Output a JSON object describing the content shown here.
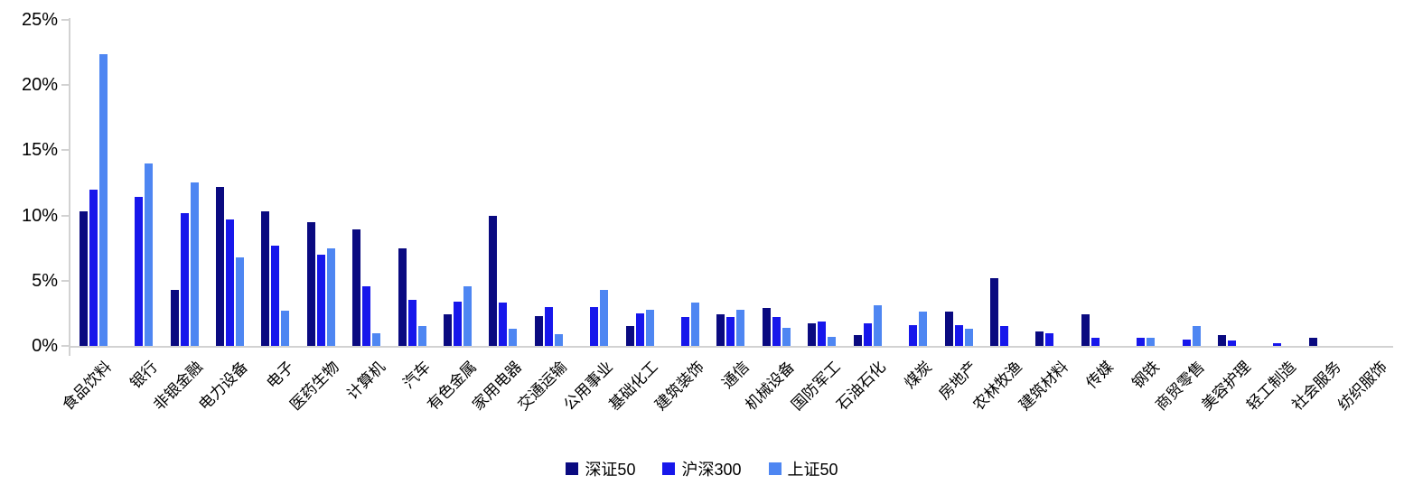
{
  "chart_data": {
    "type": "bar",
    "title": "",
    "categories": [
      "食品饮料",
      "银行",
      "非银金融",
      "电力设备",
      "电子",
      "医药生物",
      "计算机",
      "汽车",
      "有色金属",
      "家用电器",
      "交通运输",
      "公用事业",
      "基础化工",
      "建筑装饰",
      "通信",
      "机械设备",
      "国防军工",
      "石油石化",
      "煤炭",
      "房地产",
      "农林牧渔",
      "建筑材料",
      "传媒",
      "钢铁",
      "商贸零售",
      "美容护理",
      "轻工制造",
      "社会服务",
      "纺织服饰"
    ],
    "series": [
      {
        "name": "深证50",
        "color": "#0A0A80",
        "values": [
          10.3,
          0,
          4.3,
          12.2,
          10.3,
          9.5,
          8.9,
          7.5,
          2.4,
          10.0,
          2.3,
          0,
          1.5,
          0,
          2.4,
          2.9,
          1.7,
          0.8,
          0,
          2.6,
          5.2,
          1.1,
          2.4,
          0,
          0,
          0.8,
          0,
          0.6,
          0
        ]
      },
      {
        "name": "沪深300",
        "color": "#1717EB",
        "values": [
          12.0,
          11.4,
          10.2,
          9.7,
          7.7,
          7.0,
          4.6,
          3.5,
          3.4,
          3.3,
          3.0,
          3.0,
          2.5,
          2.2,
          2.2,
          2.2,
          1.9,
          1.7,
          1.6,
          1.6,
          1.5,
          1.0,
          0.6,
          0.6,
          0.5,
          0.4,
          0.2,
          0,
          0
        ]
      },
      {
        "name": "上证50",
        "color": "#4E86F2",
        "values": [
          22.4,
          14.0,
          12.5,
          6.8,
          2.7,
          7.5,
          1.0,
          1.5,
          4.6,
          1.3,
          0.9,
          4.3,
          2.8,
          3.3,
          2.8,
          1.4,
          0.7,
          3.1,
          2.6,
          1.3,
          0,
          0,
          0,
          0.6,
          1.5,
          0,
          0,
          0,
          0
        ]
      }
    ],
    "xlabel": "",
    "ylabel": "",
    "ylim": [
      0,
      25
    ],
    "ytick_labels": [
      "0%",
      "5%",
      "10%",
      "15%",
      "20%",
      "25%"
    ],
    "ytick_values": [
      0,
      5,
      10,
      15,
      20,
      25
    ],
    "grid": false,
    "legend_position": "bottom"
  }
}
